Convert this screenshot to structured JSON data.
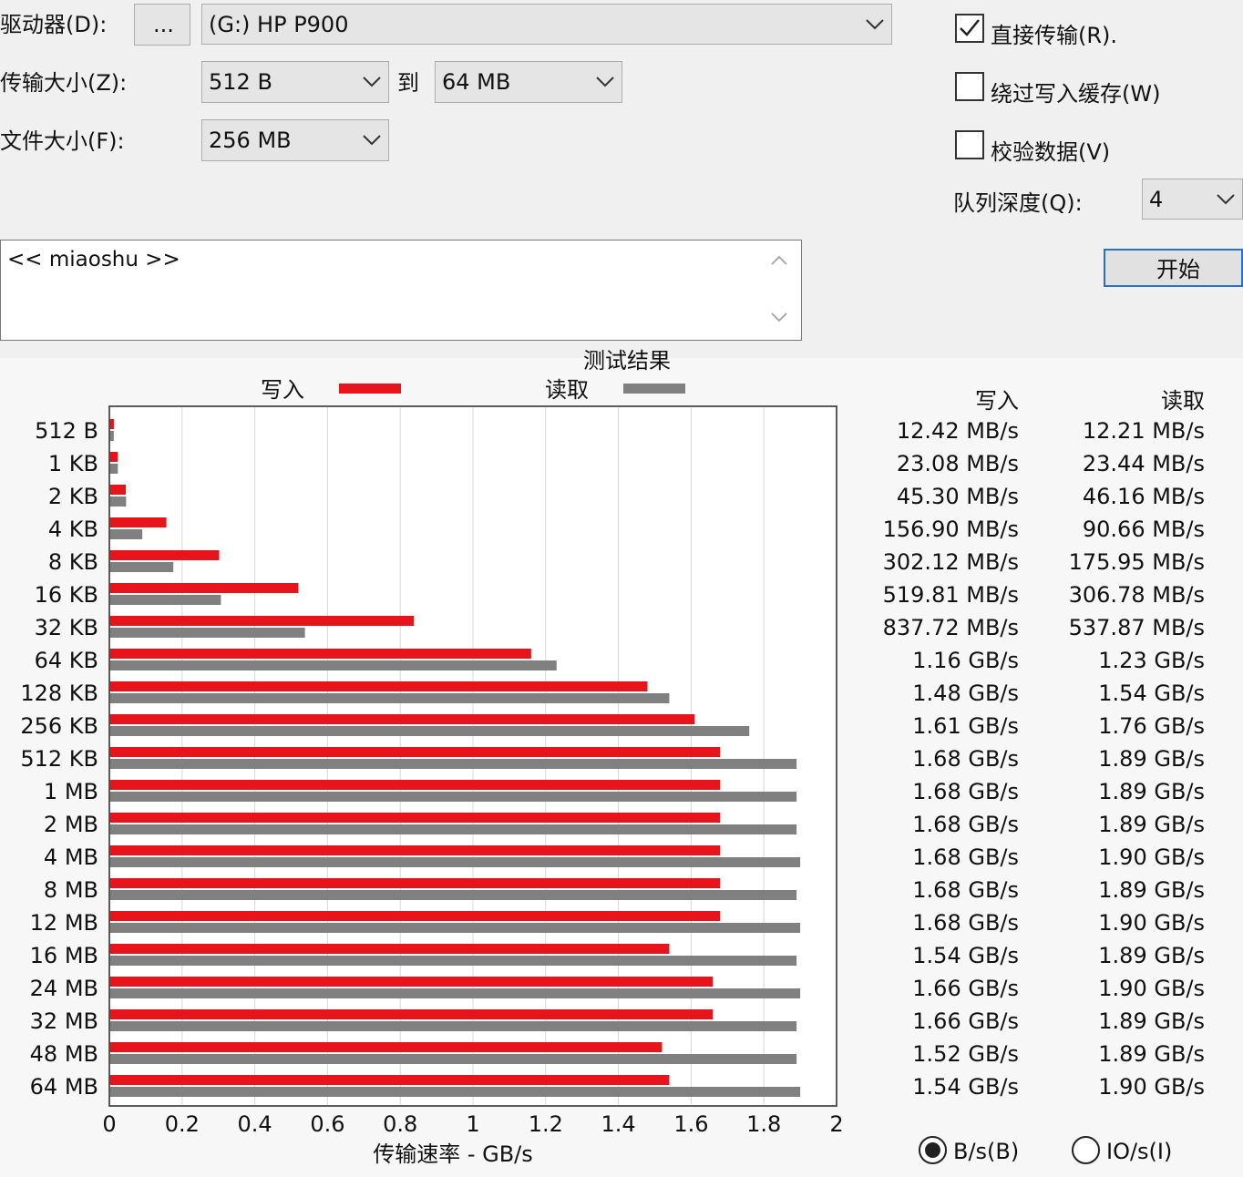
{
  "controls": {
    "drive": {
      "label": "驱动器(D):",
      "browse": "...",
      "value": "(G:) HP P900"
    },
    "transfer_size": {
      "label": "传输大小(Z):",
      "from": "512 B",
      "to_label": "到",
      "to": "64 MB"
    },
    "file_size": {
      "label": "文件大小(F):",
      "value": "256 MB"
    },
    "options": [
      {
        "label": "直接传输(R).",
        "checked": true
      },
      {
        "label": "绕过写入缓存(W)",
        "checked": false
      },
      {
        "label": "校验数据(V)",
        "checked": false
      }
    ],
    "queue_depth": {
      "label": "队列深度(Q):",
      "value": "4"
    },
    "description": "<< miaoshu >>",
    "start": "开始",
    "units": [
      {
        "label": "B/s(B)",
        "selected": true
      },
      {
        "label": "IO/s(I)",
        "selected": false
      }
    ]
  },
  "chart_data": {
    "type": "bar",
    "orientation": "horizontal",
    "title": "测试结果",
    "x_label": "传输速率 - GB/s",
    "categories": [
      "512 B",
      "1 KB",
      "2 KB",
      "4 KB",
      "8 KB",
      "16 KB",
      "32 KB",
      "64 KB",
      "128 KB",
      "256 KB",
      "512 KB",
      "1 MB",
      "2 MB",
      "4 MB",
      "8 MB",
      "12 MB",
      "16 MB",
      "24 MB",
      "32 MB",
      "48 MB",
      "64 MB"
    ],
    "series": [
      {
        "name": "写入",
        "color": "#e8141c",
        "values": [
          0.01242,
          0.02308,
          0.0453,
          0.1569,
          0.30212,
          0.51981,
          0.83772,
          1.16,
          1.48,
          1.61,
          1.68,
          1.68,
          1.68,
          1.68,
          1.68,
          1.68,
          1.54,
          1.66,
          1.66,
          1.52,
          1.54
        ],
        "value_labels": [
          "12.42 MB/s",
          "23.08 MB/s",
          "45.30 MB/s",
          "156.90 MB/s",
          "302.12 MB/s",
          "519.81 MB/s",
          "837.72 MB/s",
          "1.16 GB/s",
          "1.48 GB/s",
          "1.61 GB/s",
          "1.68 GB/s",
          "1.68 GB/s",
          "1.68 GB/s",
          "1.68 GB/s",
          "1.68 GB/s",
          "1.68 GB/s",
          "1.54 GB/s",
          "1.66 GB/s",
          "1.66 GB/s",
          "1.52 GB/s",
          "1.54 GB/s"
        ]
      },
      {
        "name": "读取",
        "color": "#808080",
        "values": [
          0.01221,
          0.02344,
          0.04616,
          0.09066,
          0.17595,
          0.30678,
          0.53787,
          1.23,
          1.54,
          1.76,
          1.89,
          1.89,
          1.89,
          1.9,
          1.89,
          1.9,
          1.89,
          1.9,
          1.89,
          1.89,
          1.9
        ],
        "value_labels": [
          "12.21 MB/s",
          "23.44 MB/s",
          "46.16 MB/s",
          "90.66 MB/s",
          "175.95 MB/s",
          "306.78 MB/s",
          "537.87 MB/s",
          "1.23 GB/s",
          "1.54 GB/s",
          "1.76 GB/s",
          "1.89 GB/s",
          "1.89 GB/s",
          "1.89 GB/s",
          "1.90 GB/s",
          "1.89 GB/s",
          "1.90 GB/s",
          "1.89 GB/s",
          "1.90 GB/s",
          "1.89 GB/s",
          "1.89 GB/s",
          "1.90 GB/s"
        ]
      }
    ],
    "xlim": [
      0,
      2
    ],
    "xticks": [
      0,
      0.2,
      0.4,
      0.6,
      0.8,
      1,
      1.2,
      1.4,
      1.6,
      1.8,
      2
    ],
    "grid": true
  }
}
